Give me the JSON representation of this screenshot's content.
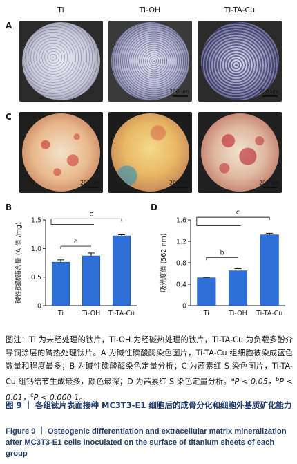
{
  "columns": [
    "Ti",
    "Ti-OH",
    "Ti-TA-Cu"
  ],
  "panels": {
    "A": "A",
    "C": "C",
    "B": "B",
    "D": "D"
  },
  "scale_label": "200 um",
  "chart_data": [
    {
      "type": "bar",
      "panel": "B",
      "ylabel": "碱性磷酸酶含量 (A 值 /mg)",
      "categories": [
        "Ti",
        "Ti-OH",
        "Ti-TA-Cu"
      ],
      "values": [
        0.76,
        0.87,
        1.22
      ],
      "errors": [
        0.04,
        0.05,
        0.02
      ],
      "ylim": [
        0,
        1.5
      ],
      "yticks": [
        "0",
        "0.5",
        "1.0",
        "1.5"
      ],
      "bar_color": "#2f6fd8",
      "significance": [
        "a",
        "c"
      ]
    },
    {
      "type": "bar",
      "panel": "D",
      "ylabel": "吸光度值 (562 nm)",
      "categories": [
        "Ti",
        "Ti-OH",
        "Ti-TA-Cu"
      ],
      "values": [
        0.52,
        0.65,
        1.32
      ],
      "errors": [
        0.01,
        0.04,
        0.03
      ],
      "ylim": [
        0,
        1.6
      ],
      "yticks": [
        "0",
        "0.4",
        "0.8",
        "1.2",
        "1.6"
      ],
      "bar_color": "#2f6fd8",
      "significance": [
        "b",
        "c"
      ]
    }
  ],
  "caption": {
    "p1": "图注：Ti 为未经处理的钛片，Ti-OH 为经碱热处理的钛片，Ti-TA-Cu 为负载多酚介导铜涂层的碱热处理钛片。A 为碱性磷酸酶染色图片，Ti-TA-Cu 组细胞被染成蓝色数量和程度最多；B 为碱性磷酸酶染色定量分析；C 为茜素红 S 染色图片，Ti-TA-Cu 组钙结节生成最多，颜色最深；D 为茜素红 S 染色定量分析。",
    "p_a": "a",
    "p_a_text": "P < 0.05，",
    "p_b": "b",
    "p_b_text": "P < 0.01，",
    "p_c": "c",
    "p_c_text": "P < 0.000 1。"
  },
  "figure_title_cn": "图 9 ｜ 各组钛片表面接种 MC3T3-E1 细胞后的成骨分化和细胞外基质矿化能力",
  "figure_title_en": "Figure 9 ｜ Osteogenic differentiation and extracellular matrix mineralization after MC3T3-E1 cells inoculated on the surface of titanium sheets of each group"
}
